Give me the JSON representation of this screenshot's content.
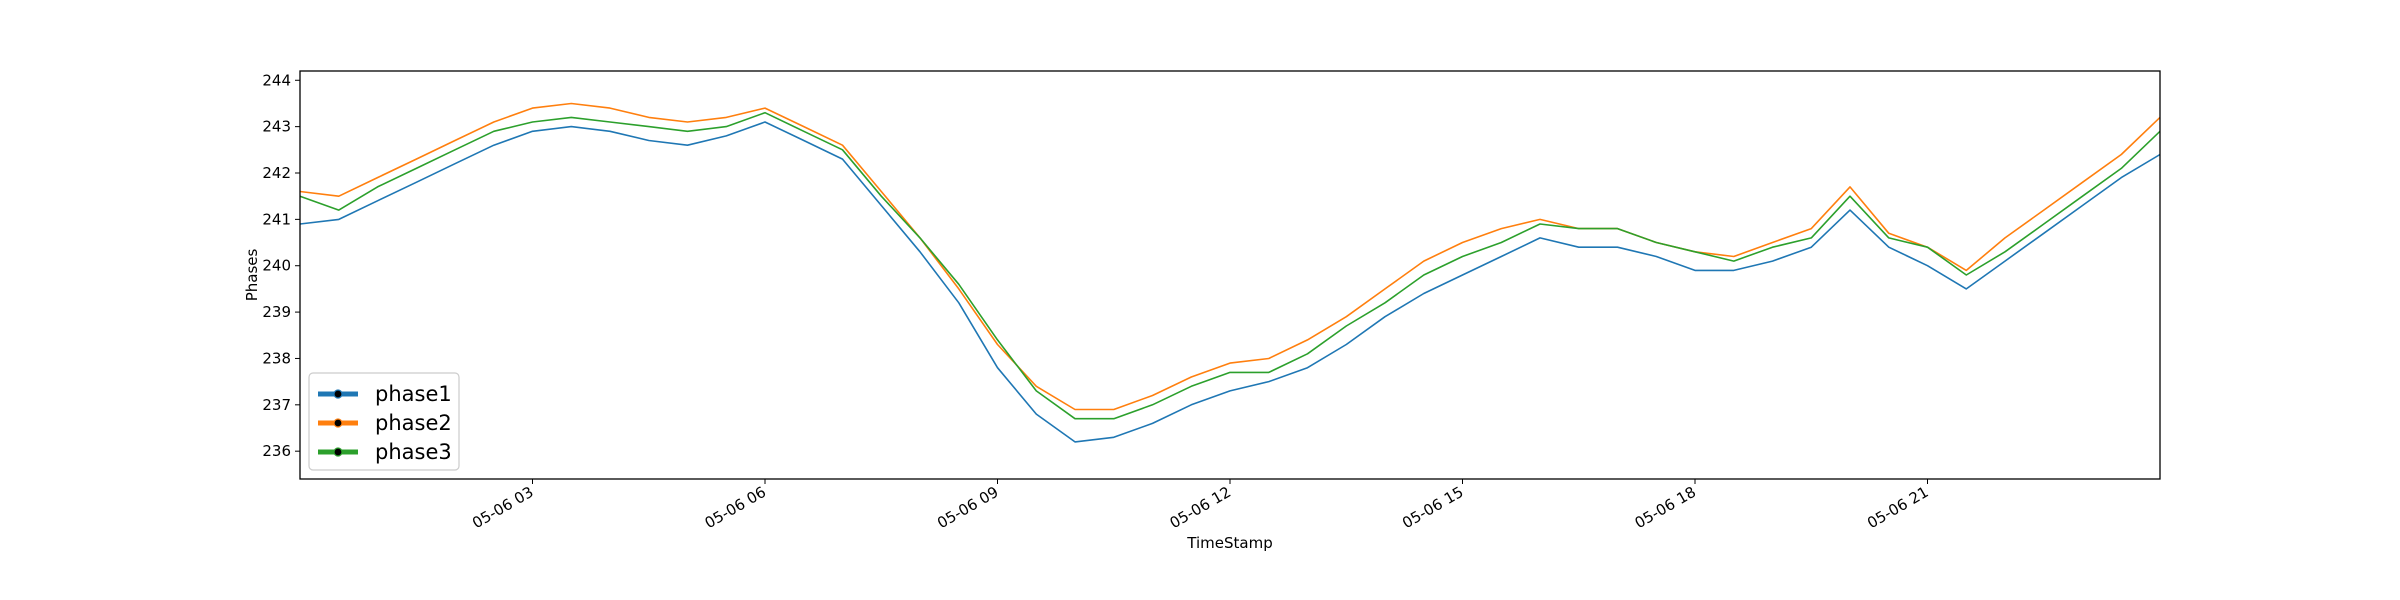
{
  "chart_data": {
    "type": "line",
    "title": "",
    "xlabel": "TimeStamp",
    "ylabel": "Phases",
    "x_range_hours": [
      0,
      24
    ],
    "ylim": [
      235.4,
      244.2
    ],
    "yticks": [
      236,
      237,
      238,
      239,
      240,
      241,
      242,
      243,
      244
    ],
    "xticks": [
      {
        "hour": 3,
        "label": "05-06 03"
      },
      {
        "hour": 6,
        "label": "05-06 06"
      },
      {
        "hour": 9,
        "label": "05-06 09"
      },
      {
        "hour": 12,
        "label": "05-06 12"
      },
      {
        "hour": 15,
        "label": "05-06 15"
      },
      {
        "hour": 18,
        "label": "05-06 18"
      },
      {
        "hour": 21,
        "label": "05-06 21"
      }
    ],
    "grid": false,
    "legend_position": "lower-left",
    "series": [
      {
        "name": "phase1",
        "color": "#1f77b4",
        "x": [
          0,
          0.5,
          1,
          1.5,
          2,
          2.5,
          3,
          3.5,
          4,
          4.5,
          5,
          5.5,
          6,
          6.5,
          7,
          7.5,
          8,
          8.5,
          9,
          9.5,
          10,
          10.5,
          11,
          11.5,
          12,
          12.5,
          13,
          13.5,
          14,
          14.5,
          15,
          15.5,
          16,
          16.5,
          17,
          17.5,
          18,
          18.5,
          19,
          19.5,
          20,
          20.5,
          21,
          21.5,
          22,
          22.5,
          23,
          23.5,
          24
        ],
        "values": [
          240.9,
          241.0,
          241.4,
          241.8,
          242.2,
          242.6,
          242.9,
          243.0,
          242.9,
          242.7,
          242.6,
          242.8,
          243.1,
          242.7,
          242.3,
          241.3,
          240.3,
          239.2,
          237.8,
          236.8,
          236.2,
          236.3,
          236.6,
          237.0,
          237.3,
          237.5,
          237.8,
          238.3,
          238.9,
          239.4,
          239.8,
          240.2,
          240.6,
          240.4,
          240.4,
          240.2,
          239.9,
          239.9,
          240.1,
          240.4,
          241.2,
          240.4,
          240.0,
          239.5,
          240.1,
          240.7,
          241.3,
          241.9,
          242.4
        ]
      },
      {
        "name": "phase2",
        "color": "#ff7f0e",
        "x": [
          0,
          0.5,
          1,
          1.5,
          2,
          2.5,
          3,
          3.5,
          4,
          4.5,
          5,
          5.5,
          6,
          6.5,
          7,
          7.5,
          8,
          8.5,
          9,
          9.5,
          10,
          10.5,
          11,
          11.5,
          12,
          12.5,
          13,
          13.5,
          14,
          14.5,
          15,
          15.5,
          16,
          16.5,
          17,
          17.5,
          18,
          18.5,
          19,
          19.5,
          20,
          20.5,
          21,
          21.5,
          22,
          22.5,
          23,
          23.5,
          24
        ],
        "values": [
          241.6,
          241.5,
          241.9,
          242.3,
          242.7,
          243.1,
          243.4,
          243.5,
          243.4,
          243.2,
          243.1,
          243.2,
          243.4,
          243.0,
          242.6,
          241.6,
          240.6,
          239.5,
          238.3,
          237.4,
          236.9,
          236.9,
          237.2,
          237.6,
          237.9,
          238.0,
          238.4,
          238.9,
          239.5,
          240.1,
          240.5,
          240.8,
          241.0,
          240.8,
          240.8,
          240.5,
          240.3,
          240.2,
          240.5,
          240.8,
          241.7,
          240.7,
          240.4,
          239.9,
          240.6,
          241.2,
          241.8,
          242.4,
          243.2
        ]
      },
      {
        "name": "phase3",
        "color": "#2ca02c",
        "x": [
          0,
          0.5,
          1,
          1.5,
          2,
          2.5,
          3,
          3.5,
          4,
          4.5,
          5,
          5.5,
          6,
          6.5,
          7,
          7.5,
          8,
          8.5,
          9,
          9.5,
          10,
          10.5,
          11,
          11.5,
          12,
          12.5,
          13,
          13.5,
          14,
          14.5,
          15,
          15.5,
          16,
          16.5,
          17,
          17.5,
          18,
          18.5,
          19,
          19.5,
          20,
          20.5,
          21,
          21.5,
          22,
          22.5,
          23,
          23.5,
          24
        ],
        "values": [
          241.5,
          241.2,
          241.7,
          242.1,
          242.5,
          242.9,
          243.1,
          243.2,
          243.1,
          243.0,
          242.9,
          243.0,
          243.3,
          242.9,
          242.5,
          241.5,
          240.6,
          239.6,
          238.4,
          237.3,
          236.7,
          236.7,
          237.0,
          237.4,
          237.7,
          237.7,
          238.1,
          238.7,
          239.2,
          239.8,
          240.2,
          240.5,
          240.9,
          240.8,
          240.8,
          240.5,
          240.3,
          240.1,
          240.4,
          240.6,
          241.5,
          240.6,
          240.4,
          239.8,
          240.3,
          240.9,
          241.5,
          242.1,
          242.9
        ]
      }
    ]
  }
}
